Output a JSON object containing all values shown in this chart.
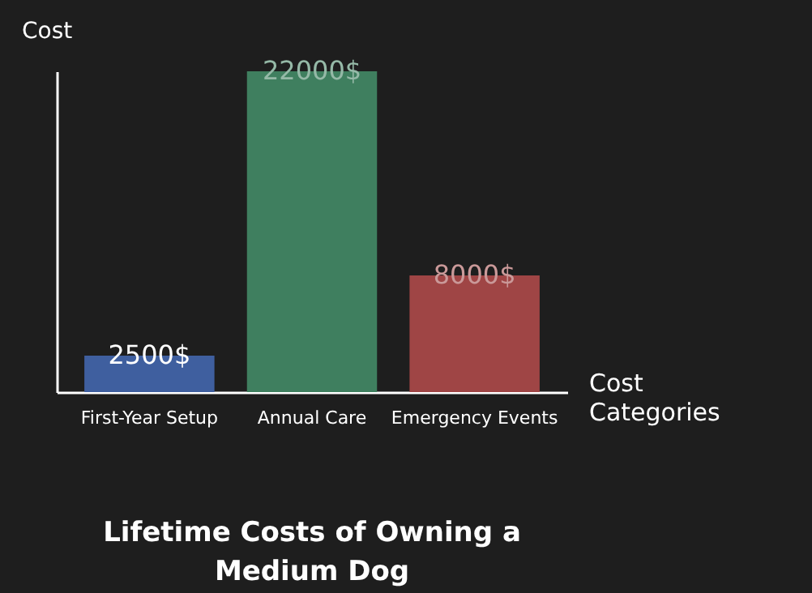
{
  "chart_data": {
    "type": "bar",
    "title": "Lifetime Costs of Owning a Medium Dog",
    "xlabel": "Cost Categories",
    "ylabel": "Cost",
    "categories": [
      "First-Year Setup",
      "Annual Care",
      "Emergency Events"
    ],
    "values": [
      2500,
      22000,
      8000
    ],
    "colors": [
      "#3f5f9f",
      "#3f7f5f",
      "#9f4545"
    ],
    "value_labels": [
      "2500$",
      "22000$",
      "8000$"
    ]
  }
}
